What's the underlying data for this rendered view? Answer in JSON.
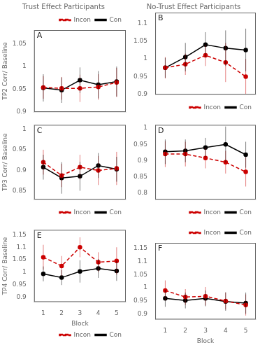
{
  "chart_data": [
    {
      "type": "line",
      "title": "Trust Effect Participants",
      "annotations": [
        "A"
      ],
      "ylabel": "TP2 Corr/ Baseline",
      "x": [
        1,
        2,
        3,
        4,
        5
      ],
      "series": [
        {
          "name": "Incon",
          "color": "#cc0000",
          "line_style": "dashed",
          "marker": "circle",
          "values": [
            0.954,
            0.952,
            0.952,
            0.955,
            0.965
          ],
          "errors": [
            0.025,
            0.025,
            0.03,
            0.028,
            0.032
          ]
        },
        {
          "name": "Con",
          "color": "#000000",
          "line_style": "solid",
          "marker": "circle",
          "values": [
            0.953,
            0.948,
            0.97,
            0.96,
            0.967
          ],
          "errors": [
            0.03,
            0.028,
            0.028,
            0.03,
            0.033
          ]
        }
      ],
      "xlim": [
        0.5,
        5.5
      ],
      "xticks": [
        1,
        2,
        3,
        4,
        5
      ],
      "ylim": [
        0.9,
        1.08
      ],
      "yticks": [
        0.9,
        0.95,
        1,
        1.05
      ],
      "grid": false,
      "legend": "upper right",
      "tick_labels": "y"
    },
    {
      "type": "line",
      "title": "No-Trust Effect Participants",
      "annotations": [
        "B"
      ],
      "x": [
        1,
        2,
        3,
        4,
        5
      ],
      "series": [
        {
          "name": "Incon",
          "color": "#cc0000",
          "line_style": "dashed",
          "marker": "circle",
          "values": [
            0.975,
            0.985,
            1.01,
            0.99,
            0.95
          ],
          "errors": [
            0.03,
            0.03,
            0.03,
            0.055,
            0.05
          ]
        },
        {
          "name": "Con",
          "color": "#000000",
          "line_style": "solid",
          "marker": "circle",
          "values": [
            0.975,
            1.005,
            1.04,
            1.03,
            1.025
          ],
          "errors": [
            0.028,
            0.04,
            0.035,
            0.05,
            0.06
          ]
        }
      ],
      "xlim": [
        0.5,
        5.5
      ],
      "xticks": [
        1,
        2,
        3,
        4,
        5
      ],
      "ylim": [
        0.9,
        1.13
      ],
      "yticks": [
        0.9,
        0.95,
        1,
        1.05,
        1.1
      ],
      "grid": false,
      "legend": "lower right",
      "tick_labels": "y"
    },
    {
      "type": "line",
      "annotations": [
        "C"
      ],
      "ylabel": "TP3 Corr/ Baseline",
      "x": [
        1,
        2,
        3,
        4,
        5
      ],
      "series": [
        {
          "name": "Incon",
          "color": "#cc0000",
          "line_style": "dashed",
          "marker": "circle",
          "values": [
            0.92,
            0.888,
            0.908,
            0.9,
            0.905
          ],
          "errors": [
            0.03,
            0.028,
            0.03,
            0.035,
            0.04
          ]
        },
        {
          "name": "Con",
          "color": "#000000",
          "line_style": "solid",
          "marker": "circle",
          "values": [
            0.908,
            0.882,
            0.886,
            0.912,
            0.903
          ],
          "errors": [
            0.03,
            0.038,
            0.035,
            0.03,
            0.03
          ]
        }
      ],
      "xlim": [
        0.5,
        5.5
      ],
      "xticks": [
        1,
        2,
        3,
        4,
        5
      ],
      "ylim": [
        0.83,
        1.01
      ],
      "yticks": [
        0.85,
        0.9,
        0.95,
        1
      ],
      "grid": false,
      "legend": "lower right",
      "tick_labels": "y"
    },
    {
      "type": "line",
      "annotations": [
        "D"
      ],
      "x": [
        1,
        2,
        3,
        4,
        5
      ],
      "series": [
        {
          "name": "Incon",
          "color": "#cc0000",
          "line_style": "dashed",
          "marker": "circle",
          "values": [
            0.92,
            0.92,
            0.908,
            0.895,
            0.865
          ],
          "errors": [
            0.04,
            0.038,
            0.032,
            0.035,
            0.045
          ]
        },
        {
          "name": "Con",
          "color": "#000000",
          "line_style": "solid",
          "marker": "circle",
          "values": [
            0.927,
            0.93,
            0.94,
            0.95,
            0.918
          ],
          "errors": [
            0.038,
            0.035,
            0.03,
            0.055,
            0.04
          ]
        }
      ],
      "xlim": [
        0.5,
        5.5
      ],
      "xticks": [
        1,
        2,
        3,
        4,
        5
      ],
      "ylim": [
        0.78,
        1.01
      ],
      "yticks": [
        0.8,
        0.85,
        0.9,
        0.95,
        1
      ],
      "grid": false,
      "legend": "lower right",
      "tick_labels": "y"
    },
    {
      "type": "line",
      "annotations": [
        "E"
      ],
      "xlabel": "Block",
      "ylabel": "TP4 Corr/ Baseline",
      "x": [
        1,
        2,
        3,
        4,
        5
      ],
      "series": [
        {
          "name": "Incon",
          "color": "#cc0000",
          "line_style": "dashed",
          "marker": "circle",
          "values": [
            1.06,
            1.025,
            1.1,
            1.04,
            1.045
          ],
          "errors": [
            0.05,
            0.04,
            0.04,
            0.04,
            0.055
          ]
        },
        {
          "name": "Con",
          "color": "#000000",
          "line_style": "solid",
          "marker": "circle",
          "values": [
            0.993,
            0.978,
            1.003,
            1.015,
            1.005
          ],
          "errors": [
            0.03,
            0.03,
            0.045,
            0.038,
            0.04
          ]
        }
      ],
      "xlim": [
        0.5,
        5.5
      ],
      "xticks": [
        1,
        2,
        3,
        4,
        5
      ],
      "ylim": [
        0.88,
        1.17
      ],
      "yticks": [
        0.9,
        0.95,
        1,
        1.05,
        1.1,
        1.15
      ],
      "grid": false,
      "legend": "lower right"
    },
    {
      "type": "line",
      "annotations": [
        "F"
      ],
      "xlabel": "Block",
      "x": [
        1,
        2,
        3,
        4,
        5
      ],
      "series": [
        {
          "name": "Incon",
          "color": "#cc0000",
          "line_style": "dashed",
          "marker": "circle",
          "values": [
            0.99,
            0.965,
            0.968,
            0.95,
            0.935
          ],
          "errors": [
            0.038,
            0.03,
            0.035,
            0.032,
            0.04
          ]
        },
        {
          "name": "Con",
          "color": "#000000",
          "line_style": "solid",
          "marker": "circle",
          "values": [
            0.96,
            0.952,
            0.96,
            0.948,
            0.942
          ],
          "errors": [
            0.032,
            0.03,
            0.03,
            0.035,
            0.04
          ]
        }
      ],
      "xlim": [
        0.5,
        5.5
      ],
      "xticks": [
        1,
        2,
        3,
        4,
        5
      ],
      "ylim": [
        0.88,
        1.17
      ],
      "yticks": [
        0.9,
        0.95,
        1,
        1.05,
        1.1,
        1.15
      ],
      "grid": false,
      "legend": "upper right"
    }
  ]
}
